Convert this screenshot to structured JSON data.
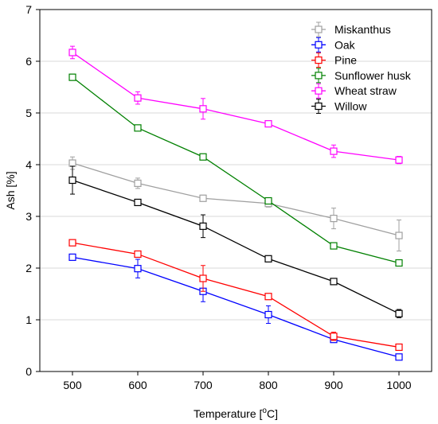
{
  "chart_data": {
    "type": "line",
    "title": "",
    "xlabel": "Temperature [",
    "xlabel_sup": "o",
    "xlabel_unit": "C]",
    "ylabel": "Ash [%]",
    "x": [
      500,
      600,
      700,
      800,
      900,
      1000
    ],
    "xlim": [
      450,
      1050
    ],
    "ylim": [
      0,
      7
    ],
    "yticks": [
      0,
      1,
      2,
      3,
      4,
      5,
      6,
      7
    ],
    "grid": "horizontal",
    "legend_position": "top-right",
    "marker": "open-square",
    "error_bars": true,
    "series": [
      {
        "name": "Miskanthus",
        "color": "#a0a0a0",
        "values": [
          4.03,
          3.64,
          3.35,
          3.25,
          2.96,
          2.63
        ],
        "errors": [
          0.12,
          0.1,
          0.06,
          0.07,
          0.2,
          0.3
        ]
      },
      {
        "name": "Oak",
        "color": "#0000ff",
        "values": [
          2.21,
          1.99,
          1.55,
          1.1,
          0.62,
          0.28
        ],
        "errors": [
          0.04,
          0.18,
          0.2,
          0.17,
          0.05,
          0.05
        ]
      },
      {
        "name": "Pine",
        "color": "#ff0000",
        "values": [
          2.49,
          2.27,
          1.8,
          1.45,
          0.68,
          0.47
        ],
        "errors": [
          0.05,
          0.06,
          0.25,
          0.05,
          0.08,
          0.04
        ]
      },
      {
        "name": "Sunflower husk",
        "color": "#008000",
        "values": [
          5.69,
          4.71,
          4.15,
          3.3,
          2.43,
          2.1
        ],
        "errors": [
          0.06,
          0.04,
          0.04,
          0.06,
          0.06,
          0.04
        ]
      },
      {
        "name": "Wheat straw",
        "color": "#ff00ff",
        "values": [
          6.17,
          5.29,
          5.08,
          4.79,
          4.26,
          4.09
        ],
        "errors": [
          0.12,
          0.12,
          0.2,
          0.05,
          0.12,
          0.07
        ]
      },
      {
        "name": "Willow",
        "color": "#000000",
        "values": [
          3.7,
          3.27,
          2.81,
          2.18,
          1.74,
          1.12
        ],
        "errors": [
          0.27,
          0.05,
          0.22,
          0.05,
          0.06,
          0.08
        ]
      }
    ]
  }
}
